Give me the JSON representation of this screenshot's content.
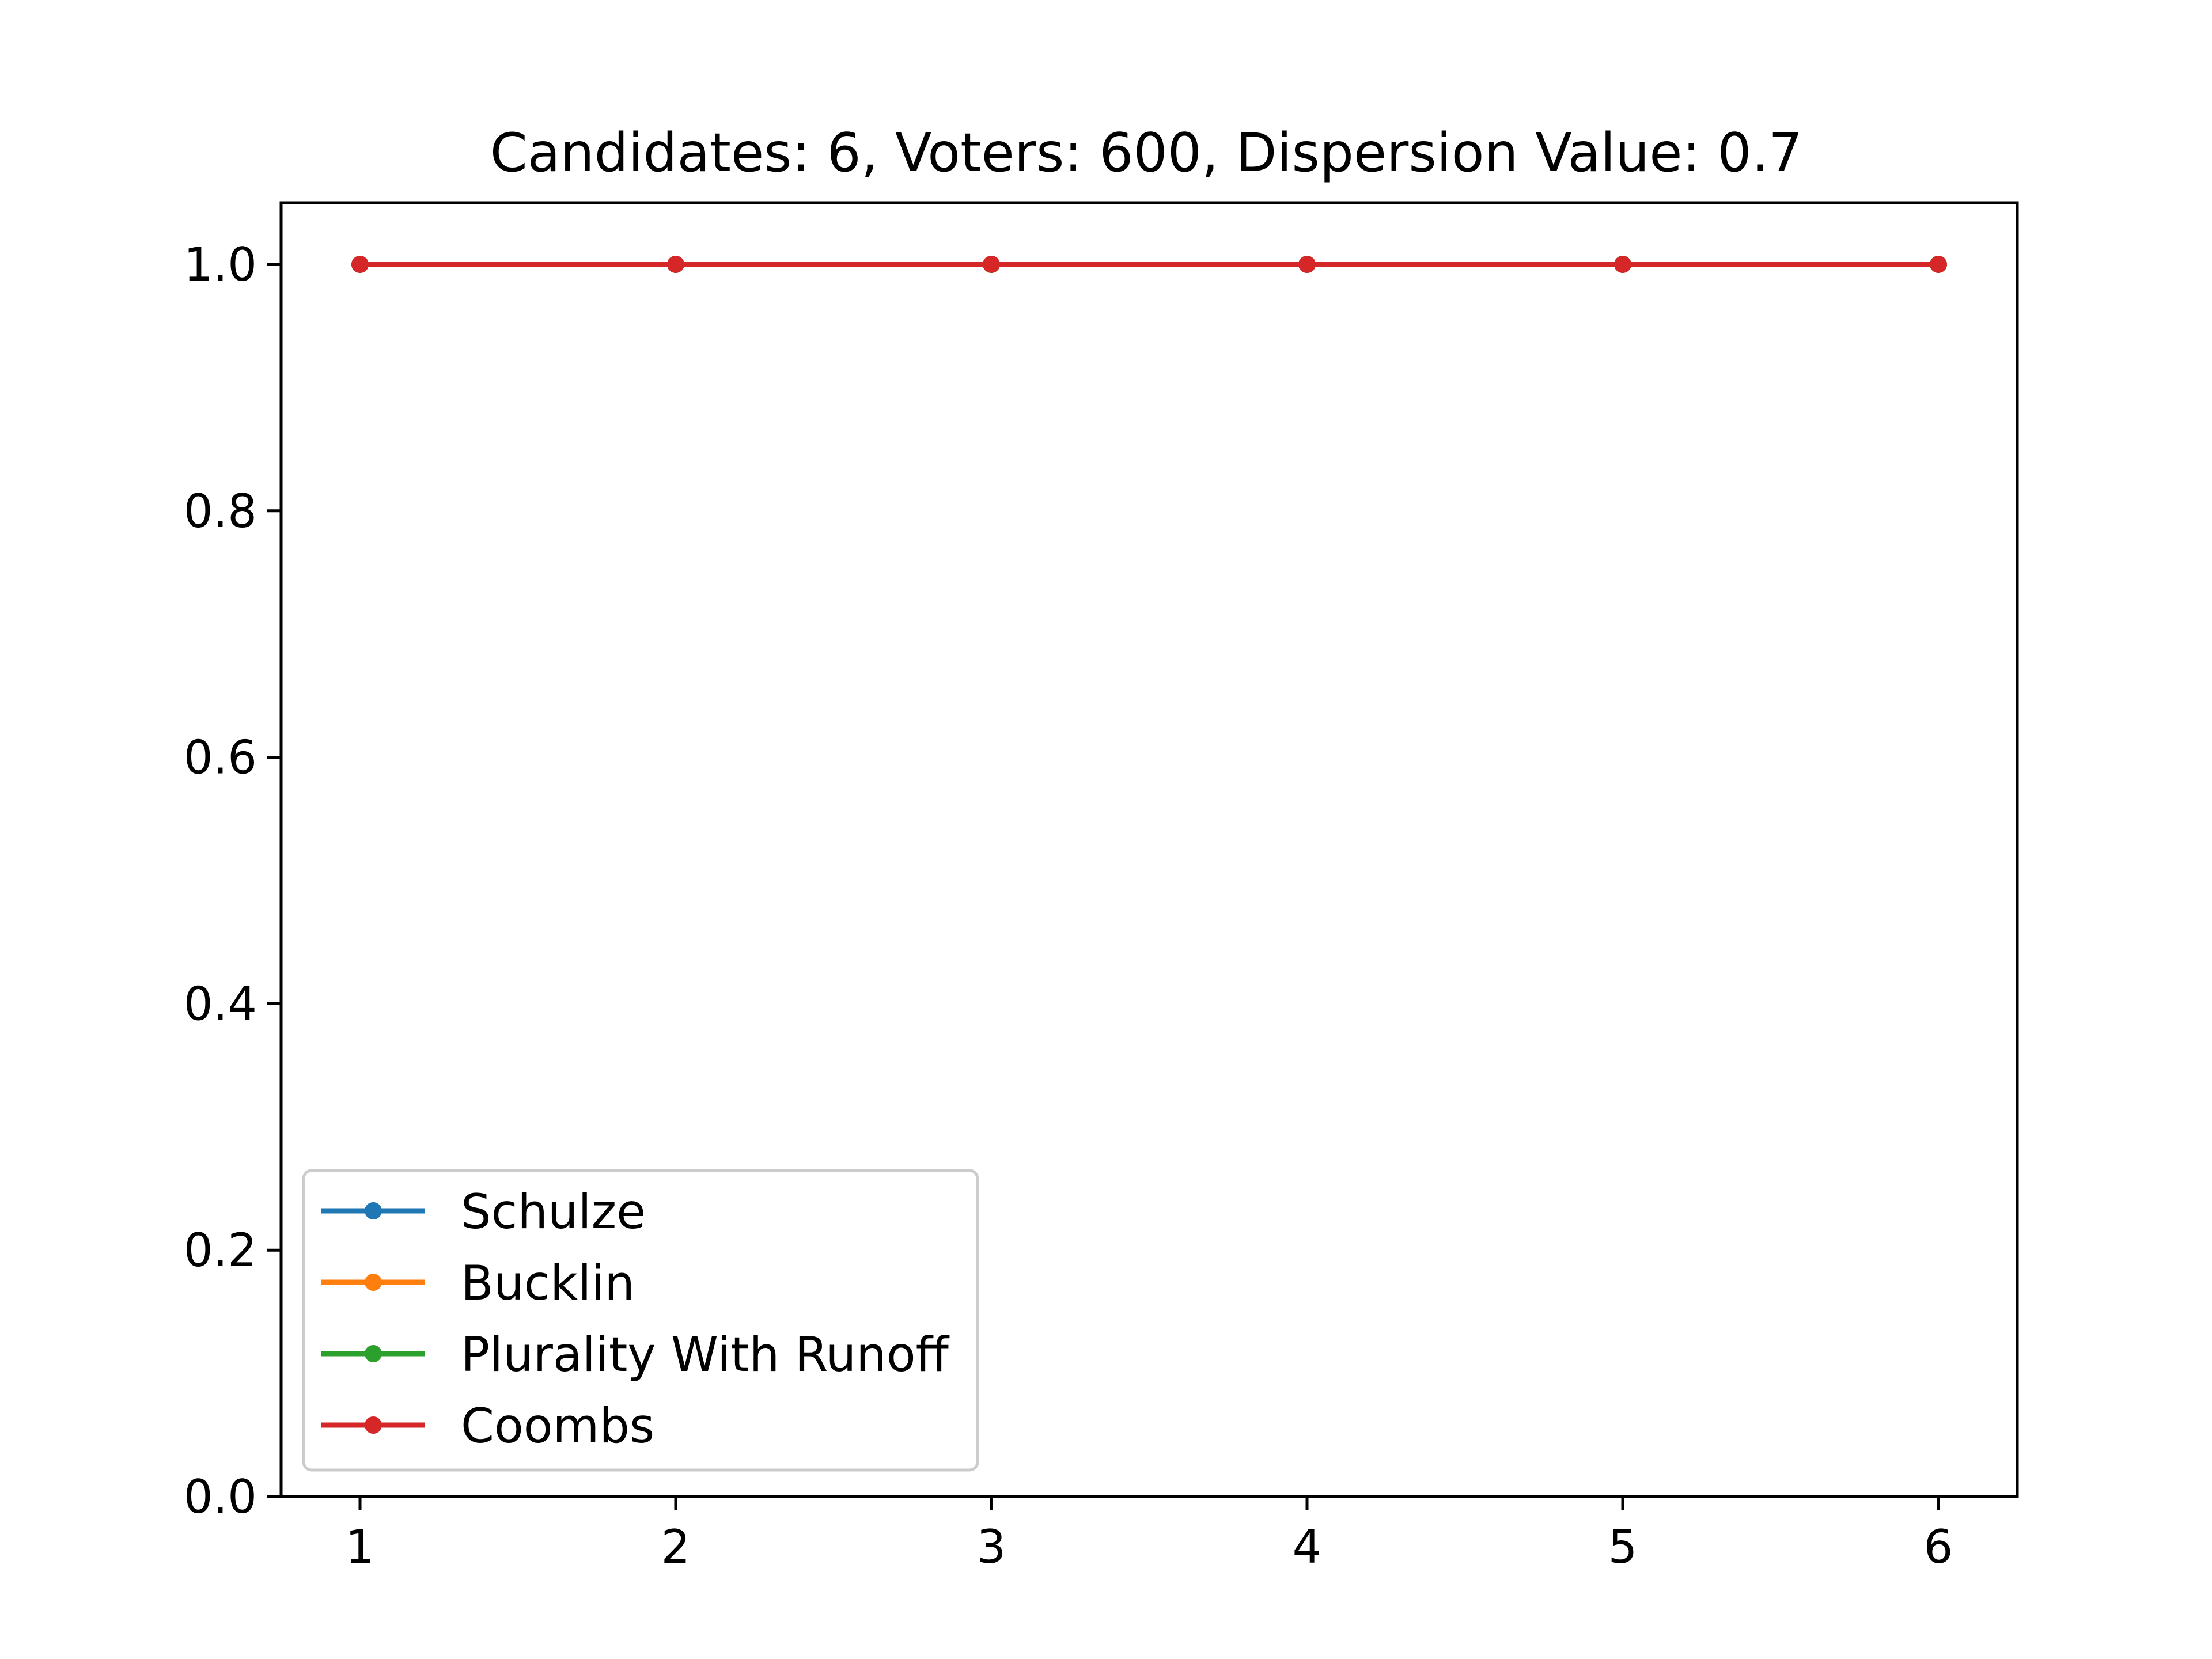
{
  "chart_data": {
    "type": "line",
    "title": "Candidates: 6, Voters: 600, Dispersion Value: 0.7",
    "xlabel": "",
    "ylabel": "",
    "x": [
      1,
      2,
      3,
      4,
      5,
      6
    ],
    "xlim": [
      0.75,
      6.25
    ],
    "ylim": [
      0.0,
      1.05
    ],
    "x_ticks": [
      "1",
      "2",
      "3",
      "4",
      "5",
      "6"
    ],
    "y_ticks": [
      "0.0",
      "0.2",
      "0.4",
      "0.6",
      "0.8",
      "1.0"
    ],
    "grid": false,
    "legend_position": "lower-left",
    "series": [
      {
        "name": "Schulze",
        "color": "#1f77b4",
        "values": [
          1,
          1,
          1,
          1,
          1,
          1
        ]
      },
      {
        "name": "Bucklin",
        "color": "#ff7f0e",
        "values": [
          1,
          1,
          1,
          1,
          1,
          1
        ]
      },
      {
        "name": "Plurality With Runoff",
        "color": "#2ca02c",
        "values": [
          1,
          1,
          1,
          1,
          1,
          1
        ]
      },
      {
        "name": "Coombs",
        "color": "#d62728",
        "values": [
          1,
          1,
          1,
          1,
          1,
          1
        ]
      }
    ]
  }
}
